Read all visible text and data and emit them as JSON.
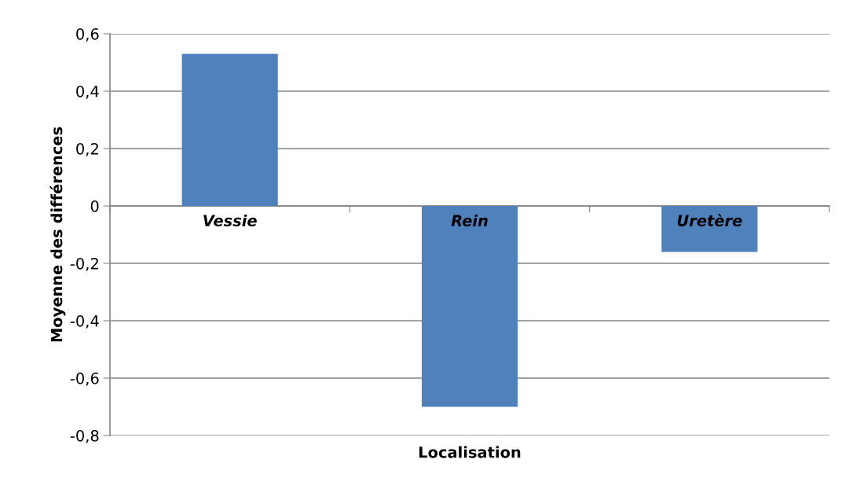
{
  "chart_data": {
    "type": "bar",
    "xlabel": "Localisation",
    "ylabel": "Moyenne des différences",
    "categories": [
      "Vessie",
      "Rein",
      "Uretère"
    ],
    "values": [
      0.53,
      -0.7,
      -0.16
    ],
    "color": "#4f81bd",
    "ylim": [
      -0.8,
      0.6
    ],
    "yticks": [
      {
        "value": -0.8,
        "label": "-0,8"
      },
      {
        "value": -0.6,
        "label": "-0,6"
      },
      {
        "value": -0.4,
        "label": "-0,4"
      },
      {
        "value": -0.2,
        "label": "-0,2"
      },
      {
        "value": 0,
        "label": "0"
      },
      {
        "value": 0.2,
        "label": "0,2"
      },
      {
        "value": 0.4,
        "label": "0,4"
      },
      {
        "value": 0.6,
        "label": "0,6"
      }
    ],
    "grid": "y",
    "legend": false
  }
}
